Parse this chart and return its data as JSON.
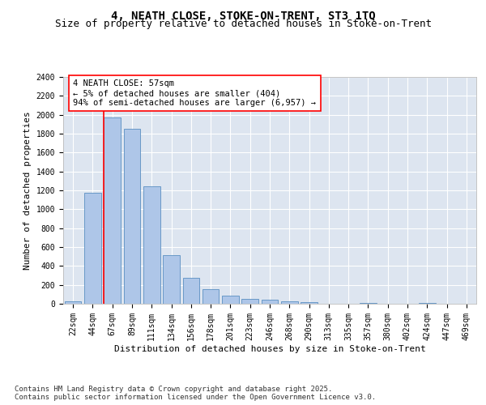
{
  "title1": "4, NEATH CLOSE, STOKE-ON-TRENT, ST3 1TQ",
  "title2": "Size of property relative to detached houses in Stoke-on-Trent",
  "xlabel": "Distribution of detached houses by size in Stoke-on-Trent",
  "ylabel": "Number of detached properties",
  "categories": [
    "22sqm",
    "44sqm",
    "67sqm",
    "89sqm",
    "111sqm",
    "134sqm",
    "156sqm",
    "178sqm",
    "201sqm",
    "223sqm",
    "246sqm",
    "268sqm",
    "290sqm",
    "313sqm",
    "335sqm",
    "357sqm",
    "380sqm",
    "402sqm",
    "424sqm",
    "447sqm",
    "469sqm"
  ],
  "values": [
    30,
    1175,
    1975,
    1855,
    1240,
    515,
    275,
    155,
    90,
    50,
    42,
    25,
    15,
    0,
    0,
    12,
    0,
    0,
    12,
    0,
    0
  ],
  "bar_color": "#aec6e8",
  "bar_edge_color": "#5a8fc2",
  "background_color": "#dde5f0",
  "grid_color": "#ffffff",
  "vline_color": "red",
  "annotation_text": "4 NEATH CLOSE: 57sqm\n← 5% of detached houses are smaller (404)\n94% of semi-detached houses are larger (6,957) →",
  "annotation_box_color": "white",
  "annotation_box_edge_color": "red",
  "ylim": [
    0,
    2400
  ],
  "yticks": [
    0,
    200,
    400,
    600,
    800,
    1000,
    1200,
    1400,
    1600,
    1800,
    2000,
    2200,
    2400
  ],
  "footer": "Contains HM Land Registry data © Crown copyright and database right 2025.\nContains public sector information licensed under the Open Government Licence v3.0.",
  "title1_fontsize": 10,
  "title2_fontsize": 9,
  "xlabel_fontsize": 8,
  "ylabel_fontsize": 8,
  "tick_fontsize": 7,
  "annotation_fontsize": 7.5,
  "footer_fontsize": 6.5
}
